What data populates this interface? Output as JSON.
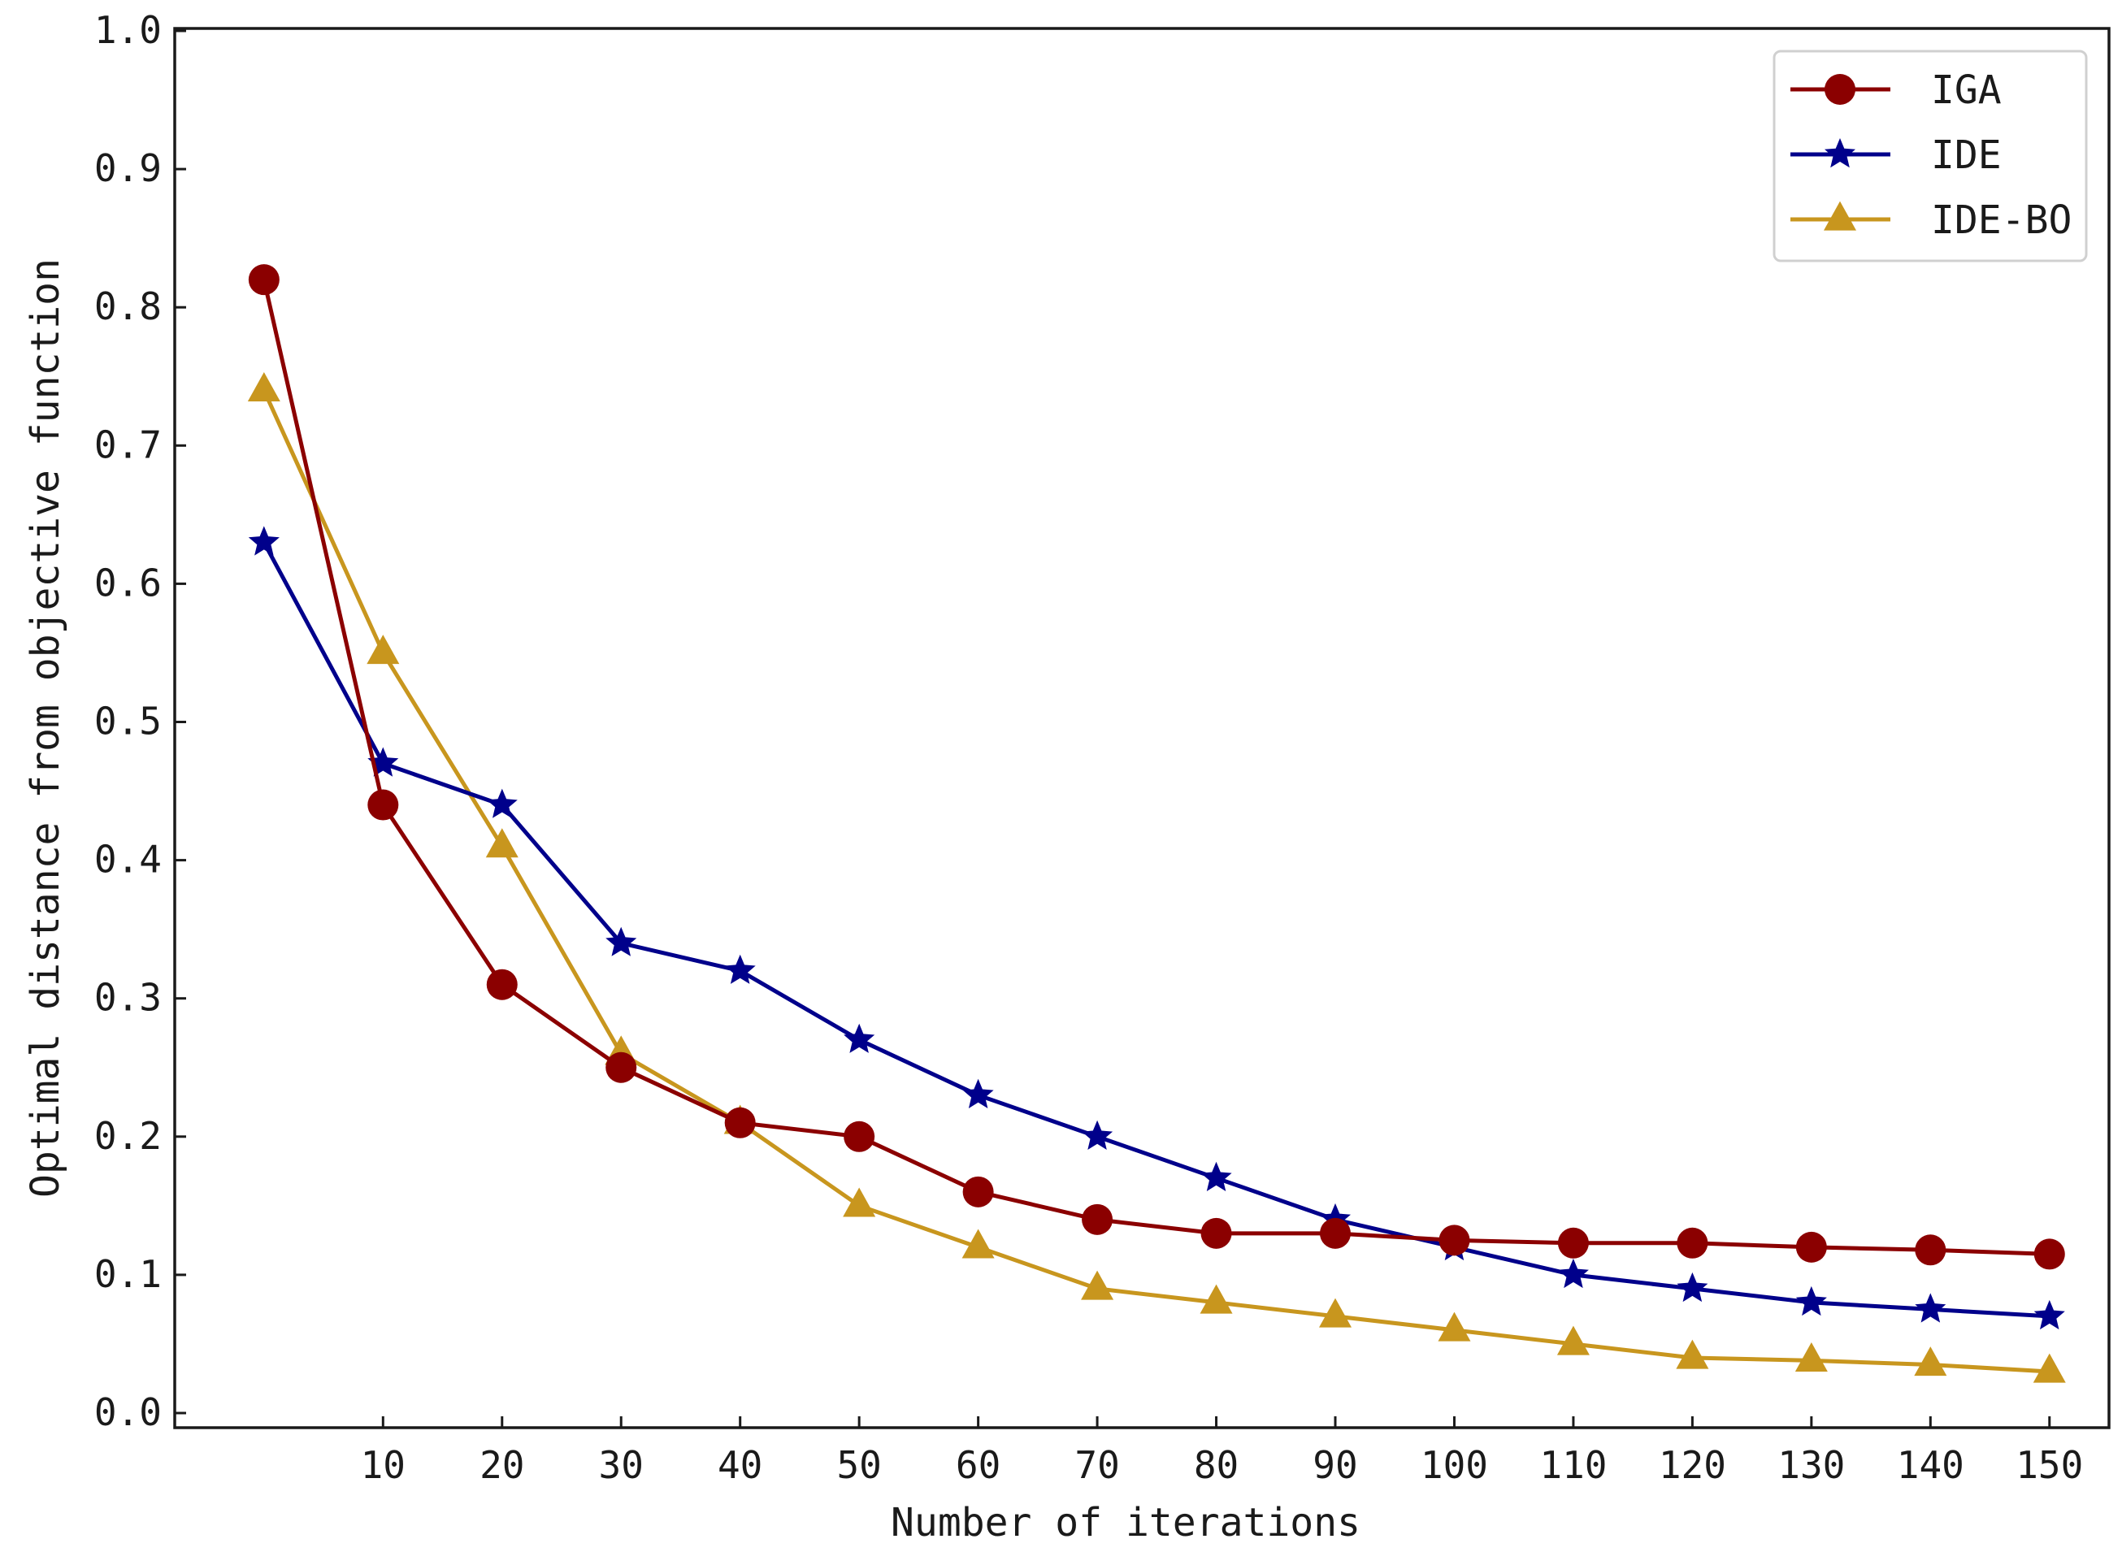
{
  "chart_data": {
    "type": "line",
    "title": "",
    "xlabel": "Number of iterations",
    "ylabel": "Optimal distance from objective function",
    "x": [
      0,
      10,
      20,
      30,
      40,
      50,
      60,
      70,
      80,
      90,
      100,
      110,
      120,
      130,
      140,
      150
    ],
    "xticks": [
      10,
      20,
      30,
      40,
      50,
      60,
      70,
      80,
      90,
      100,
      110,
      120,
      130,
      140,
      150
    ],
    "yticks": [
      "0.0",
      "0.1",
      "0.2",
      "0.3",
      "0.4",
      "0.5",
      "0.6",
      "0.7",
      "0.8",
      "0.9",
      "1.0"
    ],
    "xlim": [
      -7.5,
      155
    ],
    "ylim": [
      0,
      1.0
    ],
    "grid": false,
    "legend_position": "top-right",
    "series": [
      {
        "name": "IGA",
        "color": "#8b0000",
        "marker": "circle",
        "values": [
          0.82,
          0.44,
          0.31,
          0.25,
          0.21,
          0.2,
          0.16,
          0.14,
          0.13,
          0.13,
          0.125,
          0.123,
          0.123,
          0.12,
          0.118,
          0.115
        ]
      },
      {
        "name": "IDE",
        "color": "#00008b",
        "marker": "star",
        "values": [
          0.63,
          0.47,
          0.44,
          0.34,
          0.32,
          0.27,
          0.23,
          0.2,
          0.17,
          0.14,
          0.12,
          0.1,
          0.09,
          0.08,
          0.075,
          0.07
        ]
      },
      {
        "name": "IDE-BO",
        "color": "#c8961e",
        "marker": "triangle",
        "values": [
          0.74,
          0.55,
          0.41,
          0.26,
          0.21,
          0.15,
          0.12,
          0.09,
          0.08,
          0.07,
          0.06,
          0.05,
          0.04,
          0.038,
          0.035,
          0.03
        ]
      }
    ]
  }
}
